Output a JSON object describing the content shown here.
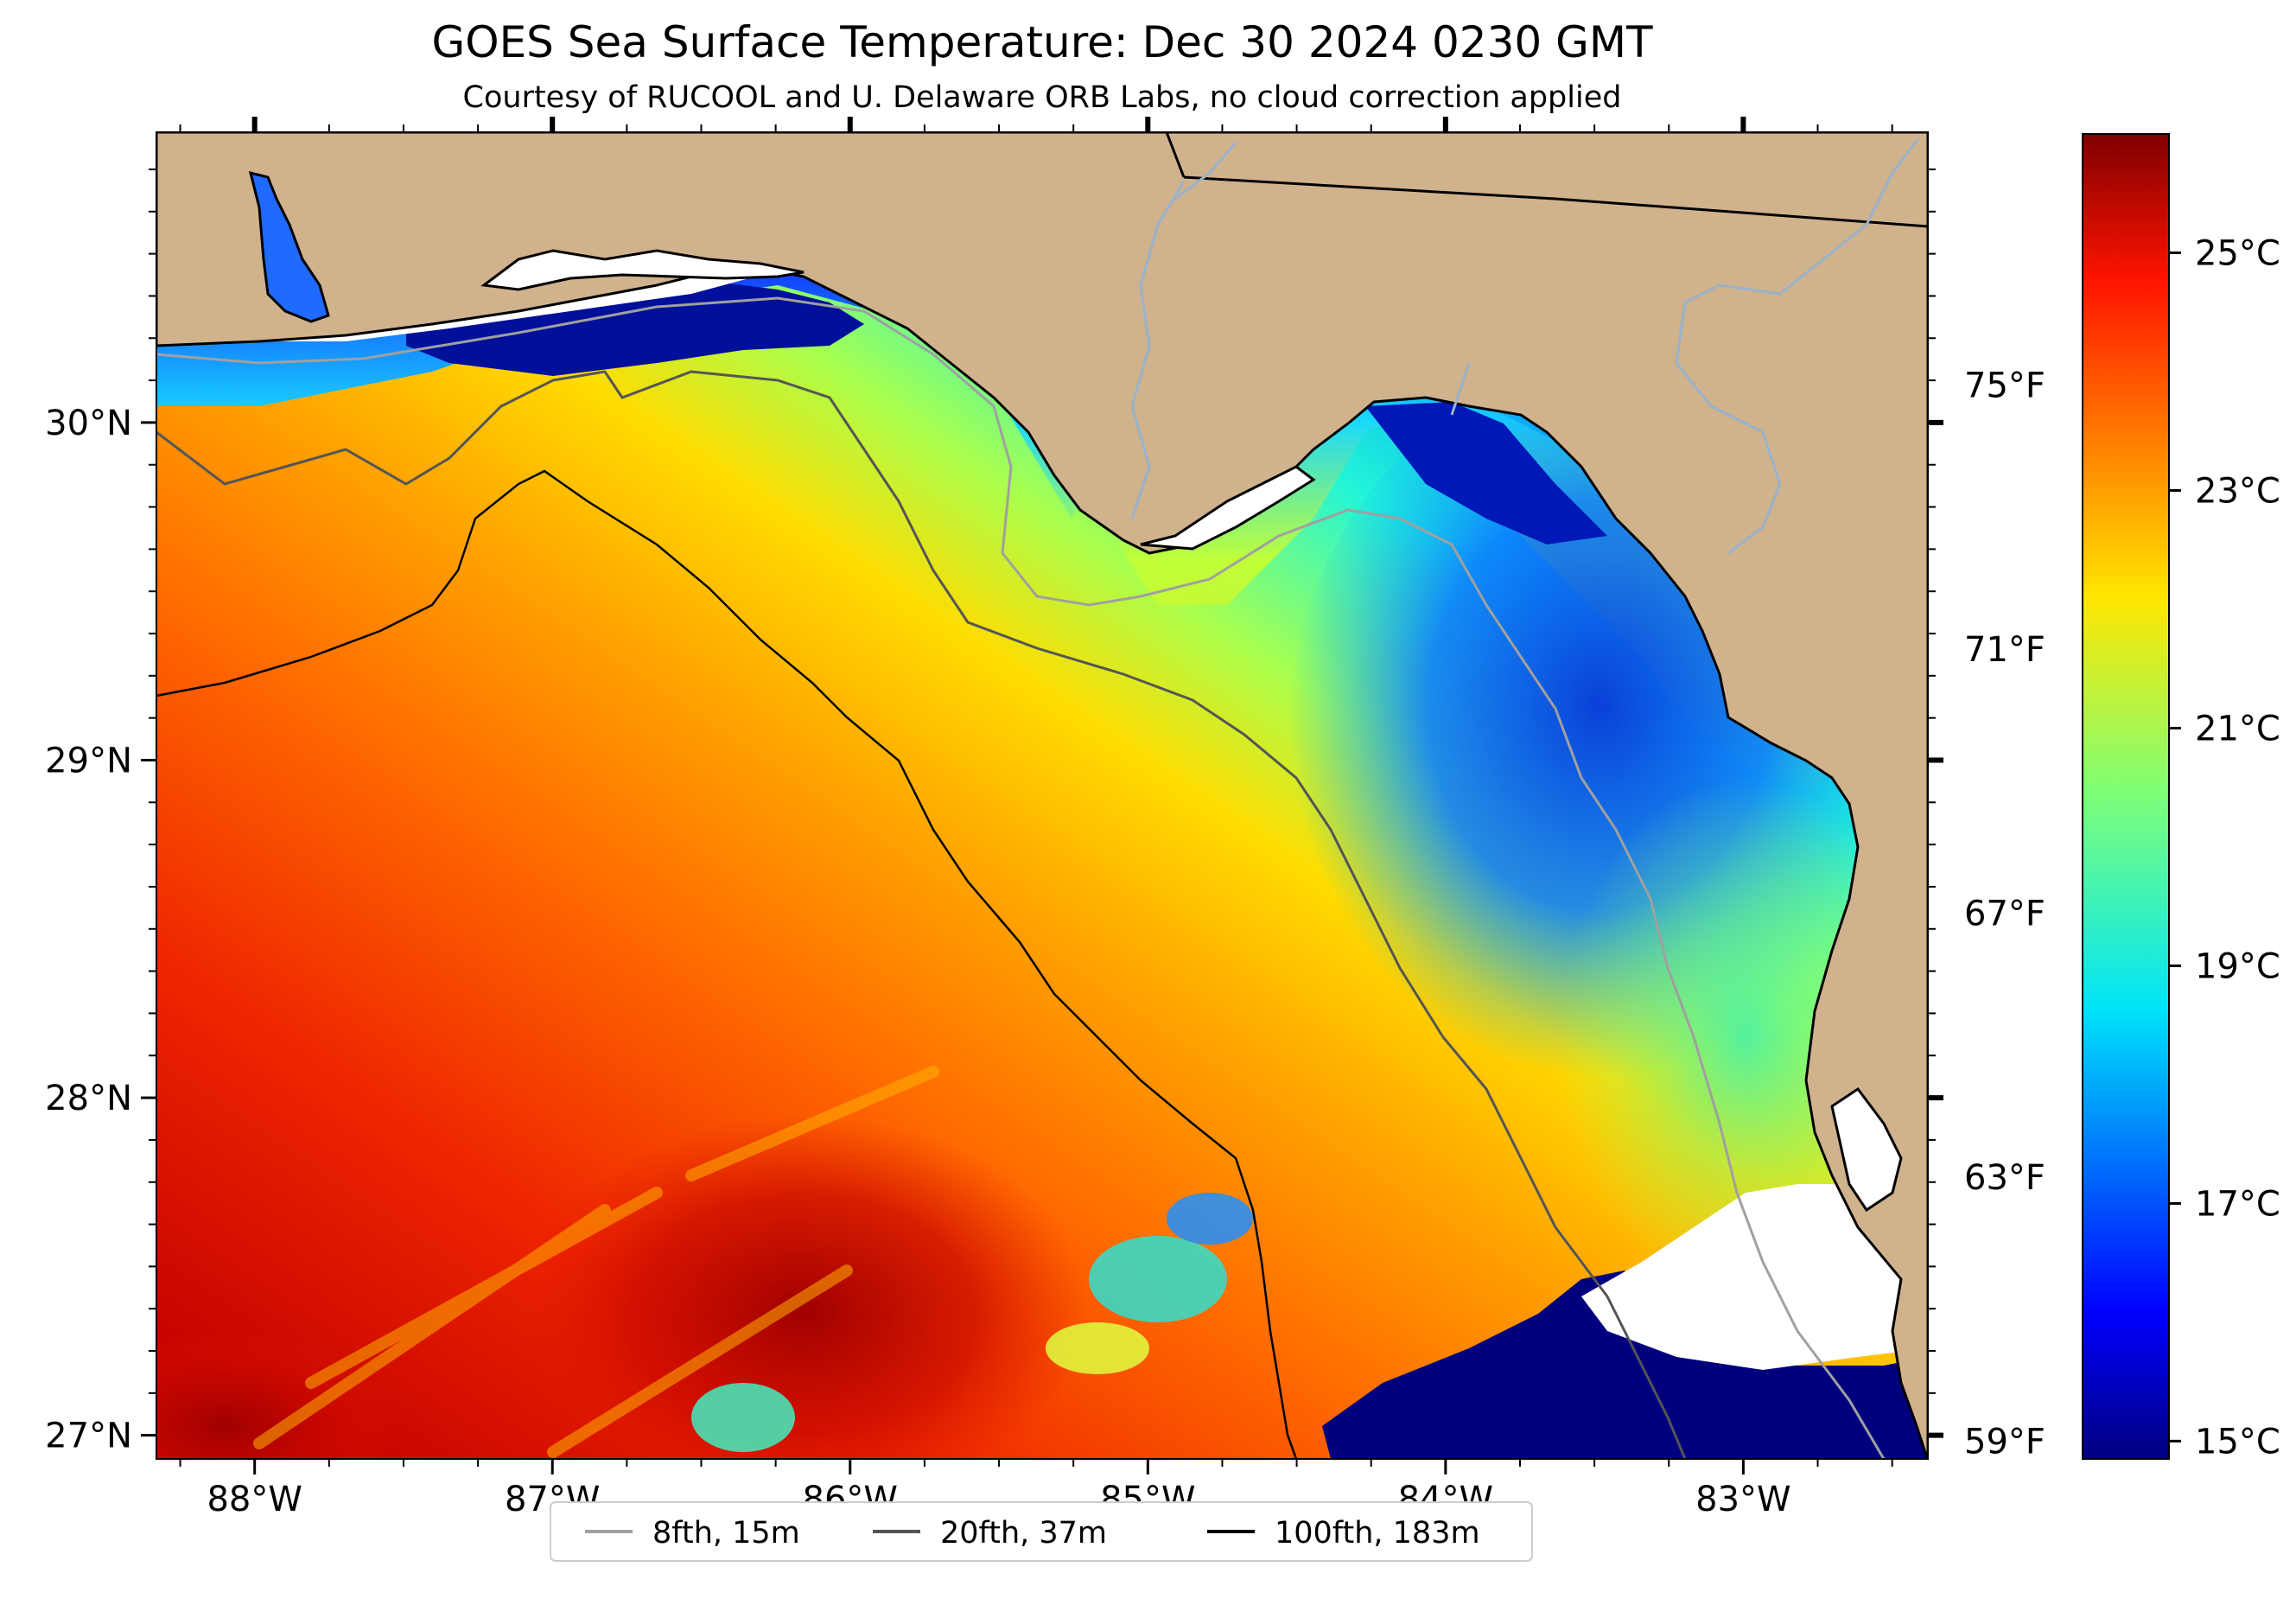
{
  "chart_data": {
    "type": "heatmap",
    "title": "GOES Sea Surface Temperature: Dec 30 2024 0230 GMT",
    "subtitle": "Courtesy of RUCOOL and U. Delaware ORB Labs, no cloud correction applied",
    "x_ticks": [
      "88°W",
      "87°W",
      "86°W",
      "85°W",
      "84°W",
      "83°W"
    ],
    "x_values": [
      -88,
      -87,
      -86,
      -85,
      -84,
      -83
    ],
    "xlim": [
      -88.33,
      -82.38
    ],
    "y_ticks": [
      "30°N",
      "29°N",
      "28°N",
      "27°N"
    ],
    "y_values": [
      30,
      29,
      28,
      27
    ],
    "ylim": [
      26.93,
      30.86
    ],
    "colorbar": {
      "celsius_ticks": [
        "25°C",
        "23°C",
        "21°C",
        "19°C",
        "17°C",
        "15°C"
      ],
      "celsius_values": [
        25,
        23,
        21,
        19,
        17,
        15
      ],
      "fahrenheit_ticks": [
        "75°F",
        "71°F",
        "67°F",
        "63°F",
        "59°F"
      ],
      "fahrenheit_values": [
        75,
        71,
        67,
        63,
        59
      ],
      "range_celsius": [
        14.85,
        26.0
      ],
      "colormap": "jet"
    },
    "legend": [
      {
        "label": "8fth, 15m",
        "color": "#a0a0a0"
      },
      {
        "label": "20fth, 37m",
        "color": "#555555"
      },
      {
        "label": "100fth, 183m",
        "color": "#000000"
      }
    ],
    "colors": {
      "land": "#d0b28c",
      "rivers": "#99b3cc",
      "no_data": "#ffffff",
      "cold": "#00007f",
      "warm": "#7f0000"
    }
  }
}
